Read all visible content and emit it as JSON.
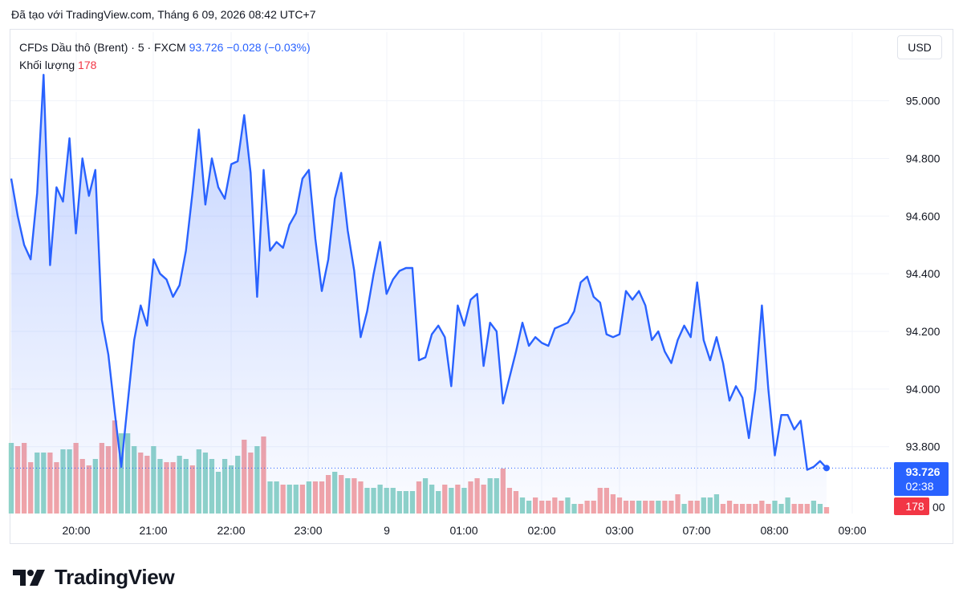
{
  "caption": "Đã tạo với TradingView.com, Tháng 6 09, 2026 08:42 UTC+7",
  "legend": {
    "symbol": "CFDs Dầu thô (Brent) · 5 · FXCM",
    "last": "93.726",
    "change": "−0.028 (−0.03%)",
    "volume_label": "Khối lượng",
    "volume_value": "178"
  },
  "currency": "USD",
  "brand": "TradingView",
  "colors": {
    "line": "#2962ff",
    "vol_up": "#8fd3c8",
    "vol_down": "#f4a5a7",
    "last_badge": "#2962ff",
    "vol_badge": "#f23645"
  },
  "chart_data": {
    "type": "area",
    "price_axis": {
      "ylim": [
        93.6,
        95.15
      ],
      "ticks": [
        "95.000",
        "94.800",
        "94.600",
        "94.400",
        "94.200",
        "94.000",
        "93.800"
      ],
      "partial_bottom_tick": "00",
      "side": "right"
    },
    "time_ticks": [
      "20:00",
      "21:00",
      "22:00",
      "23:00",
      "9",
      "01:00",
      "02:00",
      "03:00",
      "07:00",
      "08:00",
      "09:00"
    ],
    "last_price_label": "93.726",
    "countdown": "02:38",
    "volume_badge": "178",
    "series": [
      {
        "values": [
          94.73,
          94.6,
          94.5,
          94.45,
          94.68,
          95.09,
          94.43,
          94.7,
          94.65,
          94.87,
          94.54,
          94.8,
          94.67,
          94.76,
          94.24,
          94.12,
          93.92,
          93.73,
          93.95,
          94.17,
          94.29,
          94.22,
          94.45,
          94.4,
          94.38,
          94.32,
          94.36,
          94.48,
          94.68,
          94.9,
          94.64,
          94.8,
          94.7,
          94.66,
          94.78,
          94.79,
          94.95,
          94.75,
          94.32,
          94.76,
          94.48,
          94.51,
          94.49,
          94.57,
          94.61,
          94.73,
          94.76,
          94.52,
          94.34,
          94.45,
          94.66,
          94.75,
          94.55,
          94.41,
          94.18,
          94.27,
          94.4,
          94.51,
          94.33,
          94.38,
          94.41,
          94.42,
          94.42,
          94.1,
          94.11,
          94.19,
          94.22,
          94.18,
          94.01,
          94.29,
          94.22,
          94.31,
          94.33,
          94.08,
          94.23,
          94.2,
          93.95,
          94.04,
          94.13,
          94.23,
          94.15,
          94.18,
          94.16,
          94.15,
          94.21,
          94.22,
          94.23,
          94.27,
          94.37,
          94.39,
          94.32,
          94.3,
          94.19,
          94.18,
          94.19,
          94.34,
          94.31,
          94.34,
          94.29,
          94.17,
          94.2,
          94.13,
          94.09,
          94.17,
          94.22,
          94.18,
          94.37,
          94.17,
          94.1,
          94.18,
          94.09,
          93.96,
          94.01,
          93.97,
          93.83,
          94.0,
          94.29,
          94.0,
          93.77,
          93.91,
          93.91,
          93.86,
          93.89,
          93.72,
          93.73,
          93.75,
          93.726
        ],
        "volumes": [
          [
            22,
            1
          ],
          [
            21,
            0
          ],
          [
            22,
            0
          ],
          [
            16,
            0
          ],
          [
            19,
            1
          ],
          [
            19,
            1
          ],
          [
            19,
            0
          ],
          [
            16,
            0
          ],
          [
            20,
            1
          ],
          [
            20,
            1
          ],
          [
            22,
            0
          ],
          [
            17,
            0
          ],
          [
            15,
            0
          ],
          [
            17,
            1
          ],
          [
            22,
            0
          ],
          [
            21,
            0
          ],
          [
            29,
            0
          ],
          [
            25,
            1
          ],
          [
            25,
            1
          ],
          [
            21,
            1
          ],
          [
            19,
            0
          ],
          [
            18,
            0
          ],
          [
            21,
            1
          ],
          [
            17,
            1
          ],
          [
            16,
            0
          ],
          [
            16,
            0
          ],
          [
            18,
            1
          ],
          [
            17,
            1
          ],
          [
            15,
            0
          ],
          [
            20,
            1
          ],
          [
            19,
            1
          ],
          [
            17,
            1
          ],
          [
            13,
            1
          ],
          [
            17,
            1
          ],
          [
            15,
            1
          ],
          [
            18,
            1
          ],
          [
            23,
            0
          ],
          [
            19,
            0
          ],
          [
            21,
            1
          ],
          [
            24,
            0
          ],
          [
            10,
            1
          ],
          [
            10,
            1
          ],
          [
            9,
            0
          ],
          [
            9,
            1
          ],
          [
            9,
            1
          ],
          [
            9,
            0
          ],
          [
            10,
            1
          ],
          [
            10,
            0
          ],
          [
            10,
            0
          ],
          [
            12,
            0
          ],
          [
            13,
            1
          ],
          [
            12,
            0
          ],
          [
            11,
            1
          ],
          [
            11,
            0
          ],
          [
            10,
            0
          ],
          [
            8,
            1
          ],
          [
            8,
            1
          ],
          [
            9,
            1
          ],
          [
            8,
            1
          ],
          [
            8,
            1
          ],
          [
            7,
            1
          ],
          [
            7,
            1
          ],
          [
            7,
            1
          ],
          [
            10,
            0
          ],
          [
            11,
            1
          ],
          [
            9,
            1
          ],
          [
            7,
            1
          ],
          [
            9,
            0
          ],
          [
            8,
            1
          ],
          [
            9,
            0
          ],
          [
            8,
            1
          ],
          [
            10,
            0
          ],
          [
            11,
            0
          ],
          [
            9,
            0
          ],
          [
            11,
            1
          ],
          [
            11,
            1
          ],
          [
            14,
            0
          ],
          [
            8,
            0
          ],
          [
            7,
            0
          ],
          [
            5,
            1
          ],
          [
            4,
            1
          ],
          [
            5,
            0
          ],
          [
            4,
            0
          ],
          [
            4,
            0
          ],
          [
            5,
            0
          ],
          [
            4,
            0
          ],
          [
            5,
            1
          ],
          [
            3,
            1
          ],
          [
            3,
            0
          ],
          [
            4,
            0
          ],
          [
            4,
            0
          ],
          [
            8,
            0
          ],
          [
            8,
            0
          ],
          [
            6,
            0
          ],
          [
            5,
            0
          ],
          [
            4,
            0
          ],
          [
            4,
            0
          ],
          [
            4,
            1
          ],
          [
            4,
            0
          ],
          [
            4,
            0
          ],
          [
            4,
            1
          ],
          [
            4,
            0
          ],
          [
            4,
            0
          ],
          [
            6,
            0
          ],
          [
            3,
            1
          ],
          [
            4,
            0
          ],
          [
            4,
            0
          ],
          [
            5,
            1
          ],
          [
            5,
            1
          ],
          [
            6,
            1
          ],
          [
            3,
            0
          ],
          [
            4,
            0
          ],
          [
            3,
            0
          ],
          [
            3,
            0
          ],
          [
            3,
            0
          ],
          [
            3,
            0
          ],
          [
            4,
            0
          ],
          [
            3,
            0
          ],
          [
            4,
            1
          ],
          [
            3,
            1
          ],
          [
            5,
            1
          ],
          [
            3,
            0
          ],
          [
            3,
            0
          ],
          [
            3,
            0
          ],
          [
            4,
            1
          ],
          [
            3,
            1
          ],
          [
            2,
            0
          ]
        ]
      }
    ]
  }
}
